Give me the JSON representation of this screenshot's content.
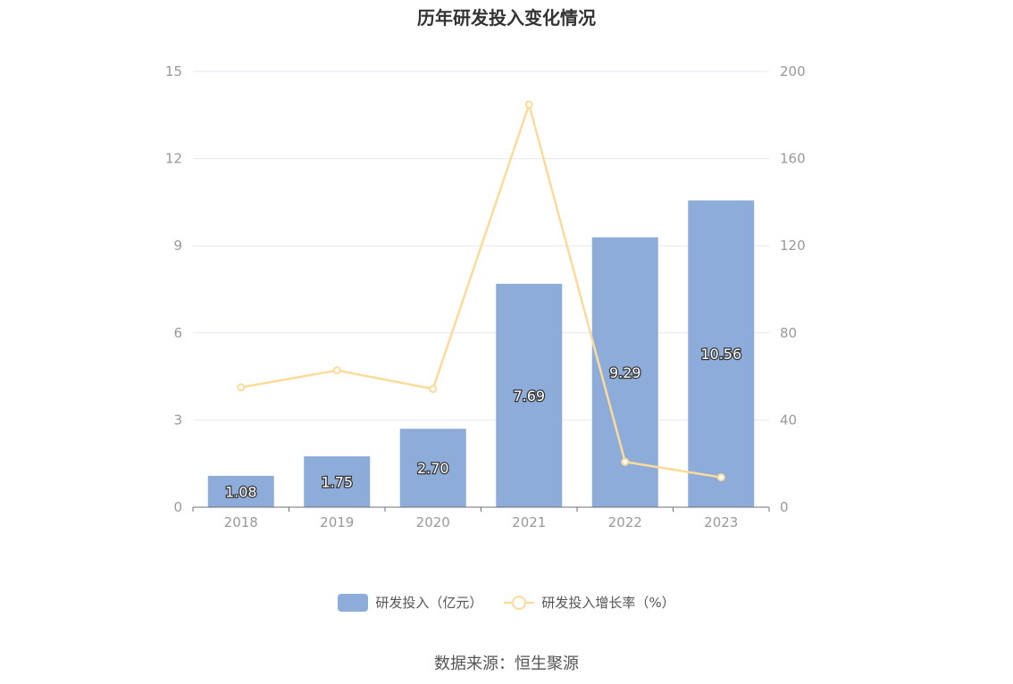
{
  "title": "历年研发投入变化情况",
  "source": "数据来源：恒生聚源",
  "colors": {
    "bar": "#8eacd9",
    "line": "#fcdb9a",
    "grid": "#e6e8f2",
    "axis_text": "#999999",
    "axis_line": "#6e7079"
  },
  "legend": {
    "bar_label": "研发投入（亿元）",
    "line_label": "研发投入增长率（%）"
  },
  "chart_data": {
    "type": "bar",
    "categories": [
      "2018",
      "2019",
      "2020",
      "2021",
      "2022",
      "2023"
    ],
    "series": [
      {
        "name": "研发投入（亿元）",
        "type": "bar",
        "axis": "left",
        "values": [
          1.08,
          1.75,
          2.7,
          7.69,
          9.29,
          10.56
        ],
        "labels": [
          "1.08",
          "1.75",
          "2.70",
          "7.69",
          "9.29",
          "10.56"
        ]
      },
      {
        "name": "研发投入增长率（%）",
        "type": "line",
        "axis": "right",
        "values": [
          55,
          62.8,
          54.3,
          184.8,
          20.8,
          13.7
        ]
      }
    ],
    "y_left": {
      "min": 0,
      "max": 15,
      "ticks": [
        "0",
        "3",
        "6",
        "9",
        "12",
        "15"
      ]
    },
    "y_right": {
      "min": 0,
      "max": 200,
      "ticks": [
        "0",
        "40",
        "80",
        "120",
        "160",
        "200"
      ]
    },
    "grid": true,
    "legend_position": "bottom"
  }
}
